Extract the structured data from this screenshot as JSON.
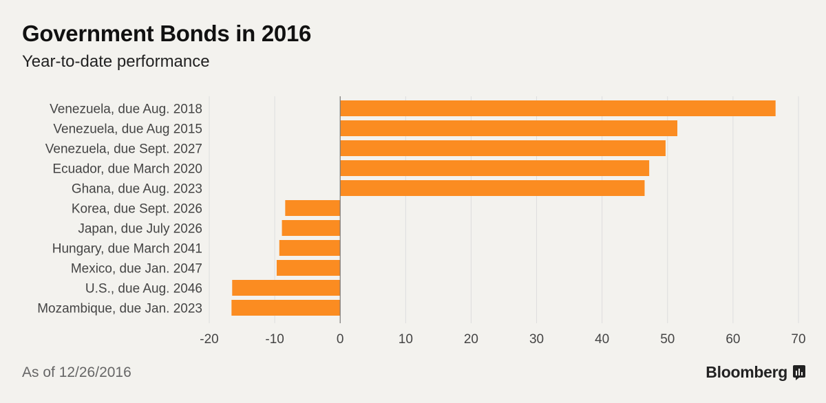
{
  "header": {
    "title": "Government Bonds in 2016",
    "subtitle": "Year-to-date performance"
  },
  "footer": {
    "note": "As of 12/26/2016",
    "brand": "Bloomberg"
  },
  "colors": {
    "bar": "#fb8c21",
    "grid": "#dddddd",
    "zero_line": "#777777",
    "label": "#444444",
    "background": "#f3f2ee"
  },
  "chart_data": {
    "type": "bar",
    "orientation": "horizontal",
    "categories": [
      "Venezuela, due Aug. 2018",
      "Venezuela, due Aug 2015",
      "Venezuela, due Sept. 2027",
      "Ecuador, due March 2020",
      "Ghana, due Aug. 2023",
      "Korea, due Sept. 2026",
      "Japan, due July 2026",
      "Hungary, due March 2041",
      "Mexico, due Jan. 2047",
      "U.S., due Aug. 2046",
      "Mozambique, due Jan. 2023"
    ],
    "values": [
      66.5,
      51.5,
      49.7,
      47.2,
      46.5,
      -8.4,
      -8.9,
      -9.3,
      -9.7,
      -16.5,
      -16.6
    ],
    "xlim": [
      -20,
      70
    ],
    "xticks": [
      -20,
      -10,
      0,
      10,
      20,
      30,
      40,
      50,
      60,
      70
    ],
    "grid": true,
    "title": "Government Bonds in 2016",
    "subtitle": "Year-to-date performance",
    "xlabel": "",
    "ylabel": ""
  }
}
